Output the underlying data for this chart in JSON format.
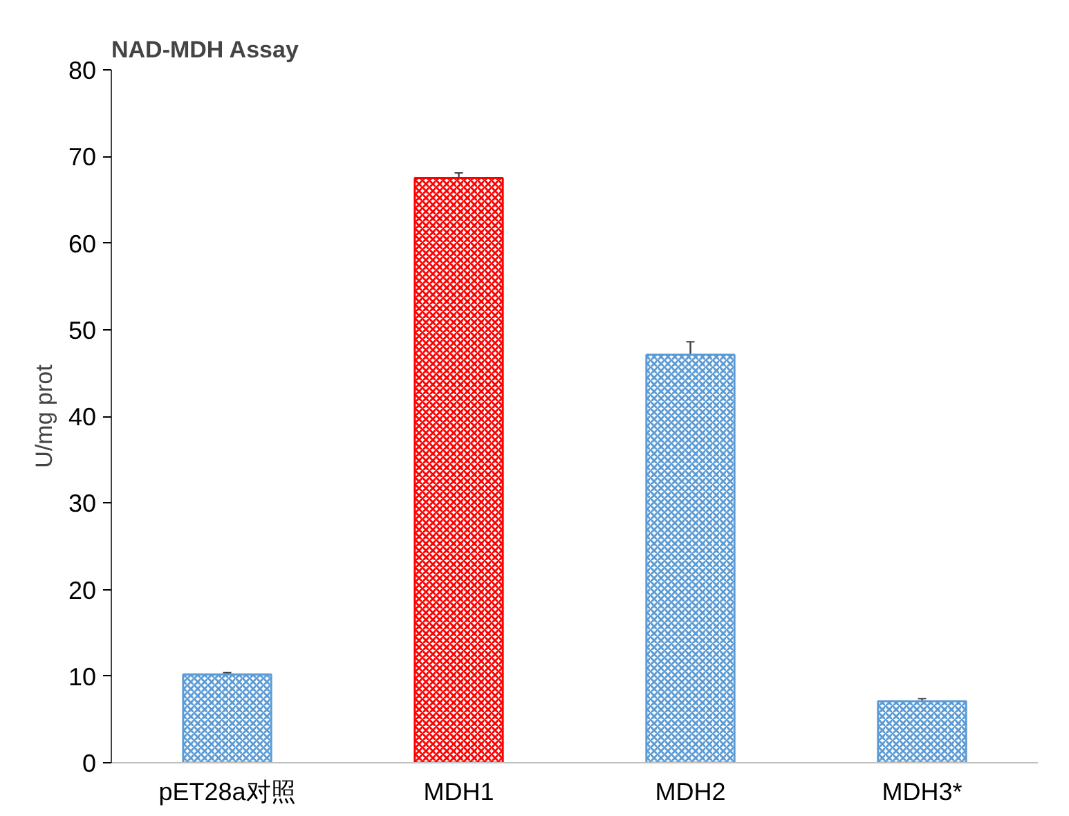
{
  "chart_data": {
    "type": "bar",
    "title": "NAD-MDH Assay",
    "ylabel": "U/mg prot",
    "categories": [
      "pET28a对照",
      "MDH1",
      "MDH2",
      "MDH3*"
    ],
    "values": [
      10.2,
      67.5,
      47.1,
      7.1
    ],
    "colors": [
      "#5b9bd5",
      "#ff0000",
      "#5b9bd5",
      "#5b9bd5"
    ],
    "errors": [
      0.2,
      0.6,
      1.5,
      0.3
    ],
    "ylim": [
      0,
      80
    ],
    "yticks": [
      0,
      10,
      20,
      30,
      40,
      50,
      60,
      70,
      80
    ]
  }
}
